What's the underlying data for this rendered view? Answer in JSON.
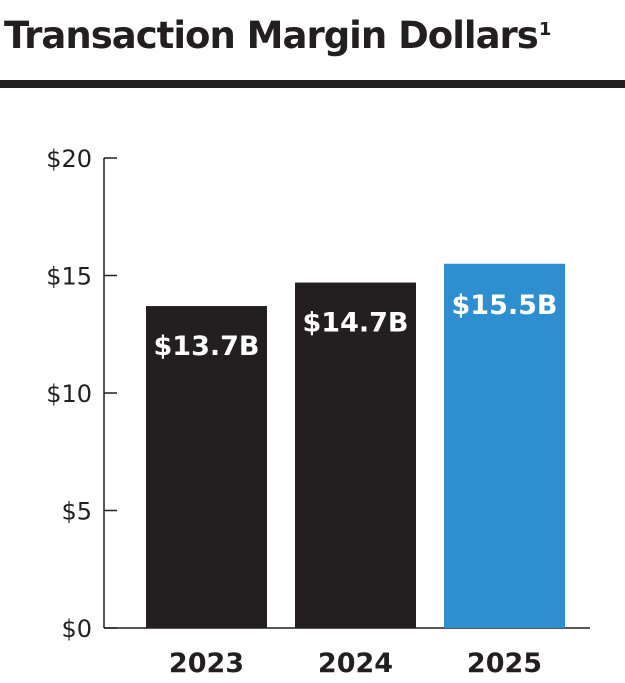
{
  "title": "Transaction Margin Dollars",
  "title_footnote": "1",
  "colors": {
    "bar_default": "#231f20",
    "bar_highlight": "#2e8fd0",
    "rule": "#231f20",
    "axis": "#231f20",
    "label_text": "#ffffff"
  },
  "chart_data": {
    "type": "bar",
    "title": "Transaction Margin Dollars",
    "xlabel": "",
    "ylabel": "",
    "categories": [
      "2023",
      "2024",
      "2025"
    ],
    "values": [
      13.7,
      14.7,
      15.5
    ],
    "data_labels": [
      "$13.7B",
      "$14.7B",
      "$15.5B"
    ],
    "highlight_index": 2,
    "ylim": [
      0,
      20
    ],
    "yticks": [
      0,
      5,
      10,
      15,
      20
    ],
    "ytick_labels": [
      "$0",
      "$5",
      "$10",
      "$15",
      "$20"
    ],
    "grid": false,
    "legend": "none"
  }
}
